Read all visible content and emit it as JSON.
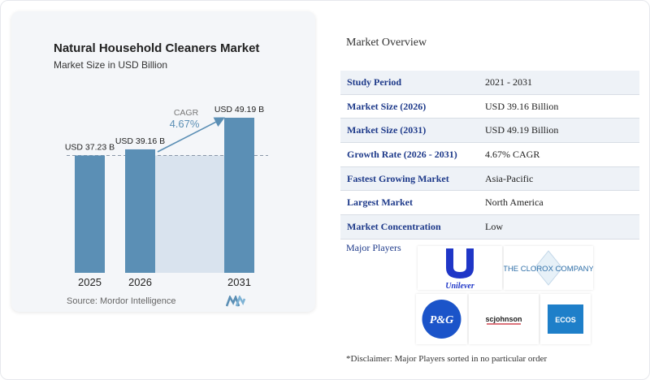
{
  "chart": {
    "title": "Natural Household Cleaners Market",
    "subtitle": "Market Size in USD Billion",
    "source": "Source: Mordor Intelligence",
    "cagr_label": "CAGR",
    "cagr_value": "4.67%"
  },
  "chart_data": {
    "type": "bar",
    "title": "Natural Household Cleaners Market",
    "subtitle": "Market Size in USD Billion",
    "categories": [
      "2025",
      "2026",
      "2031"
    ],
    "values": [
      37.23,
      39.16,
      49.19
    ],
    "data_labels": [
      "USD 37.23 B",
      "USD 39.16 B",
      "USD 49.19 B"
    ],
    "unit": "USD Billion",
    "cagr": "4.67%",
    "grid": false,
    "colors": {
      "bar": "#5b8fb5",
      "band": "#d9e3ee",
      "arrow": "#5b8fb5"
    }
  },
  "overview": {
    "title": "Market Overview",
    "rows": [
      {
        "key": "Study Period",
        "value": "2021 - 2031"
      },
      {
        "key": "Market Size (2026)",
        "value": "USD 39.16 Billion"
      },
      {
        "key": "Market Size (2031)",
        "value": "USD 49.19 Billion"
      },
      {
        "key": "Growth Rate (2026 - 2031)",
        "value": "4.67% CAGR"
      },
      {
        "key": "Fastest Growing Market",
        "value": "Asia-Pacific"
      },
      {
        "key": "Largest Market",
        "value": "North America"
      },
      {
        "key": "Market Concentration",
        "value": "Low"
      }
    ]
  },
  "players": {
    "label": "Major Players",
    "logos": {
      "unilever": "Unilever",
      "clorox": "THE CLOROX COMPANY",
      "pg": "P&G",
      "scjohnson": "scjohnson",
      "ecos": "ECOS"
    }
  },
  "disclaimer": "*Disclaimer: Major Players sorted in no particular order"
}
